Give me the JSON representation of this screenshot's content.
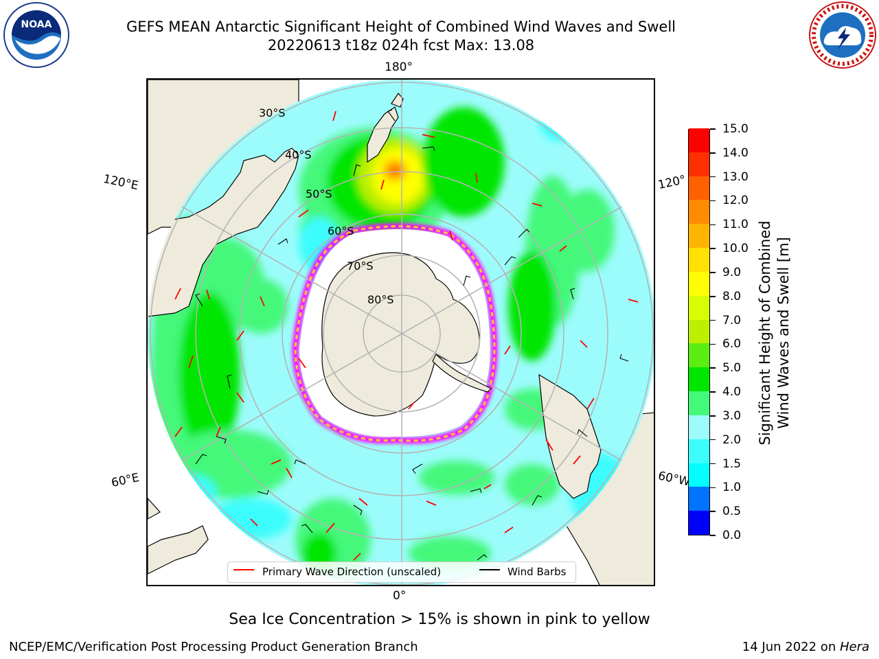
{
  "title": {
    "line1": "GEFS MEAN Antarctic Significant Height of Combined Wind Waves and Swell",
    "line2": "20220613 t18z 024h fcst   Max: 13.08"
  },
  "logos": {
    "left": "NOAA",
    "right": "NATIONAL WEATHER SERVICE"
  },
  "map": {
    "projection": "south polar stereographic",
    "longitude_labels": {
      "top": "180°",
      "bottom": "0°",
      "left_upper": "120°E",
      "left_lower": "60°E",
      "right_upper": "120°",
      "right_lower": "60°W"
    },
    "latitude_labels": [
      "30°S",
      "40°S",
      "50°S",
      "60°S",
      "70°S",
      "80°S"
    ],
    "colors": {
      "land": "#efebdc",
      "ocean_base": "#9cfcfc",
      "sea_ice_low": "#ff00ff",
      "sea_ice_high": "#ffcc33"
    }
  },
  "legend": {
    "items": [
      {
        "label": "Primary Wave Direction (unscaled)",
        "color": "#ff0000"
      },
      {
        "label": "Wind Barbs",
        "color": "#000000"
      }
    ]
  },
  "colorbar": {
    "title_line1": "Significant Height of Combined",
    "title_line2": "Wind Waves and Swell [m]",
    "ticks": [
      "0.0",
      "0.5",
      "1.0",
      "1.5",
      "2.0",
      "3.0",
      "4.0",
      "5.0",
      "6.0",
      "7.0",
      "8.0",
      "9.0",
      "10.0",
      "11.0",
      "12.0",
      "13.0",
      "14.0",
      "15.0"
    ],
    "colors": [
      "#0000ff",
      "#0073ff",
      "#00ffff",
      "#3cfcfc",
      "#9cfcfc",
      "#44f87a",
      "#00e600",
      "#5ced12",
      "#bcf000",
      "#d8fc00",
      "#ffff00",
      "#ffe000",
      "#ffb400",
      "#ff8c00",
      "#ff6000",
      "#ff3000",
      "#ff0000"
    ]
  },
  "caption": "Sea Ice Concentration > 15% is shown in pink to yellow",
  "footer": {
    "left": "NCEP/EMC/Verification Post Processing Product Generation Branch",
    "right_date": "14 Jun 2022 on ",
    "right_host": "Hera"
  }
}
